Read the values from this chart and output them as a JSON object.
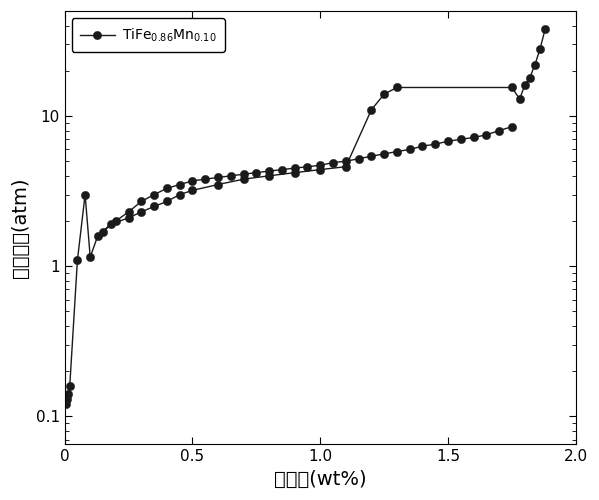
{
  "title": "",
  "xlabel": "吸氢量(wt%)",
  "ylabel": "分解压强(atm)",
  "legend_label": "TiFe$_{0.86}$Mn$_{0.10}$",
  "xlim": [
    0,
    2.0
  ],
  "ylim": [
    0.065,
    50
  ],
  "absorption_x": [
    0.005,
    0.01,
    0.015,
    0.02,
    0.05,
    0.08,
    0.1,
    0.13,
    0.18,
    0.25,
    0.3,
    0.35,
    0.4,
    0.45,
    0.5,
    0.6,
    0.7,
    0.8,
    0.9,
    1.0,
    1.1,
    1.2,
    1.25,
    1.3,
    1.75,
    1.78,
    1.8,
    1.82,
    1.84,
    1.86,
    1.88
  ],
  "absorption_y": [
    0.12,
    0.13,
    0.14,
    0.16,
    1.1,
    3.0,
    1.15,
    1.6,
    1.9,
    2.1,
    2.3,
    2.5,
    2.7,
    3.0,
    3.2,
    3.5,
    3.8,
    4.0,
    4.2,
    4.4,
    4.6,
    11.0,
    14.0,
    15.5,
    15.5,
    13.0,
    16.0,
    18.0,
    22.0,
    28.0,
    38.0
  ],
  "desorption_x": [
    1.75,
    1.7,
    1.65,
    1.6,
    1.55,
    1.5,
    1.45,
    1.4,
    1.35,
    1.3,
    1.25,
    1.2,
    1.15,
    1.1,
    1.05,
    1.0,
    0.95,
    0.9,
    0.85,
    0.8,
    0.75,
    0.7,
    0.65,
    0.6,
    0.55,
    0.5,
    0.45,
    0.4,
    0.35,
    0.3,
    0.25,
    0.2,
    0.15
  ],
  "desorption_y": [
    8.5,
    8.0,
    7.5,
    7.2,
    7.0,
    6.8,
    6.5,
    6.3,
    6.0,
    5.8,
    5.6,
    5.4,
    5.2,
    5.0,
    4.9,
    4.7,
    4.6,
    4.5,
    4.4,
    4.3,
    4.2,
    4.1,
    4.0,
    3.9,
    3.8,
    3.7,
    3.5,
    3.3,
    3.0,
    2.7,
    2.3,
    2.0,
    1.7
  ],
  "marker_color": "#1a1a1a",
  "line_color": "#1a1a1a",
  "marker_size": 6,
  "line_width": 1.0,
  "bg_color": "#f0f0f0"
}
